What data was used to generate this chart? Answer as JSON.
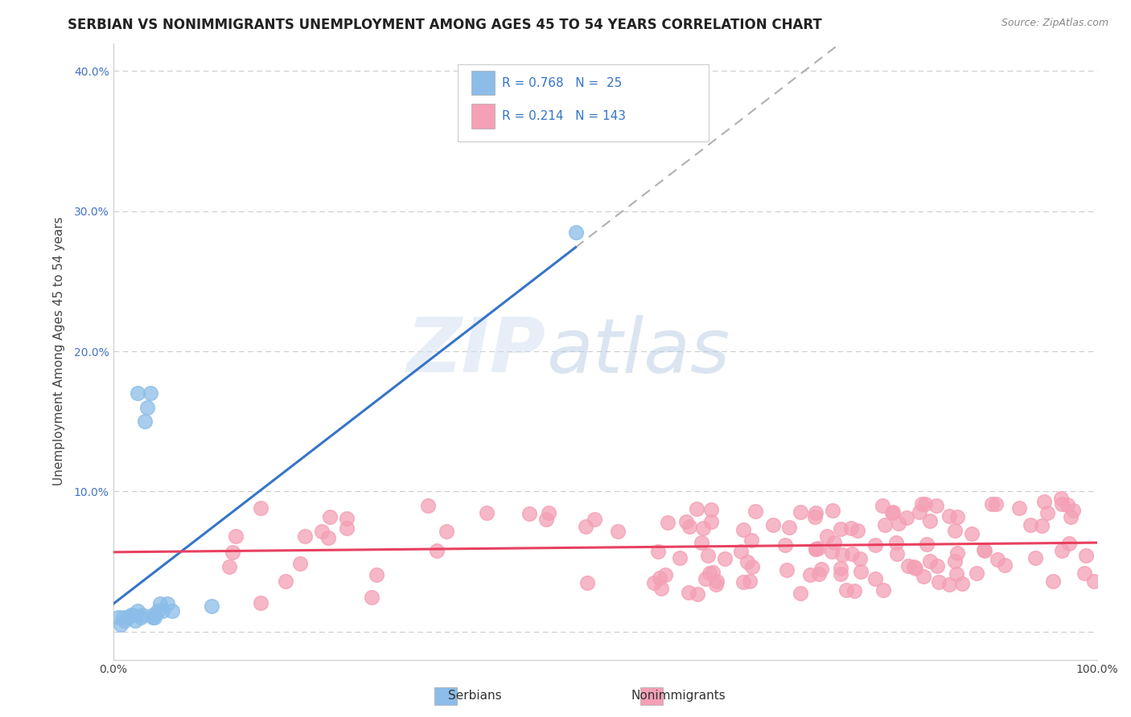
{
  "title": "SERBIAN VS NONIMMIGRANTS UNEMPLOYMENT AMONG AGES 45 TO 54 YEARS CORRELATION CHART",
  "source": "Source: ZipAtlas.com",
  "ylabel": "Unemployment Among Ages 45 to 54 years",
  "xlim": [
    0.0,
    1.0
  ],
  "ylim": [
    -0.02,
    0.42
  ],
  "xticks": [
    0.0,
    0.1,
    0.2,
    0.3,
    0.4,
    0.5,
    0.6,
    0.7,
    0.8,
    0.9,
    1.0
  ],
  "xticklabels": [
    "0.0%",
    "",
    "",
    "",
    "",
    "",
    "",
    "",
    "",
    "",
    "100.0%"
  ],
  "yticks": [
    0.0,
    0.1,
    0.2,
    0.3,
    0.4
  ],
  "yticklabels": [
    "",
    "10.0%",
    "20.0%",
    "30.0%",
    "40.0%"
  ],
  "serbian_R": 0.768,
  "serbian_N": 25,
  "nonimm_R": 0.214,
  "nonimm_N": 143,
  "serbian_color": "#8BBDE8",
  "nonimm_color": "#F4A0B5",
  "serbian_line_color": "#3575C8",
  "nonimm_line_color": "#E84060",
  "dashed_line_color": "#b0b0b0",
  "background_color": "#ffffff",
  "grid_color": "#cccccc",
  "watermark_zip": "ZIP",
  "watermark_atlas": "atlas",
  "title_fontsize": 12,
  "axis_label_fontsize": 11,
  "tick_fontsize": 10,
  "legend_label_serbian": "R = 0.768   N =  25",
  "legend_label_nonimm": "R = 0.214   N = 143",
  "bottom_label_serbian": "Serbians",
  "bottom_label_nonimm": "Nonimmigrants"
}
